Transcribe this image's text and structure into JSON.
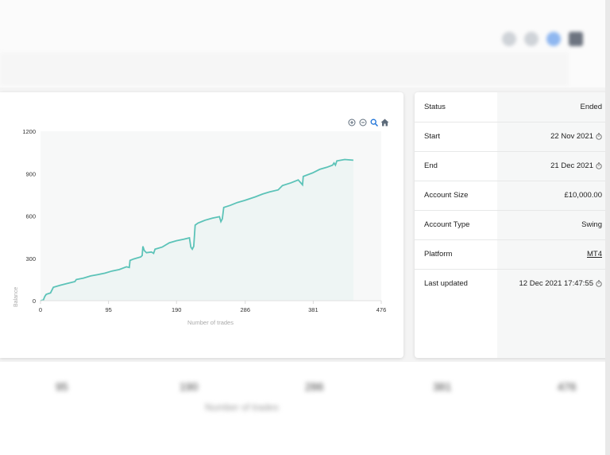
{
  "chart": {
    "y_label": "Balance",
    "x_label": "Number of trades",
    "toolbar": [
      "zoom-in",
      "zoom-out",
      "magnify",
      "home"
    ]
  },
  "chart_data": {
    "type": "area",
    "xlabel": "Number of trades",
    "ylabel": "Balance",
    "xlim": [
      0,
      476
    ],
    "ylim": [
      0,
      1200
    ],
    "x_ticks": [
      "0",
      "95",
      "190",
      "286",
      "381",
      "476"
    ],
    "y_ticks": [
      "0",
      "300",
      "600",
      "900",
      "1200"
    ],
    "series": [
      {
        "color": "#5cc3b8",
        "points": [
          [
            0,
            0
          ],
          [
            4,
            5
          ],
          [
            6,
            30
          ],
          [
            8,
            45
          ],
          [
            14,
            55
          ],
          [
            16,
            75
          ],
          [
            18,
            95
          ],
          [
            28,
            110
          ],
          [
            40,
            125
          ],
          [
            48,
            135
          ],
          [
            50,
            150
          ],
          [
            60,
            160
          ],
          [
            70,
            175
          ],
          [
            80,
            185
          ],
          [
            90,
            195
          ],
          [
            100,
            210
          ],
          [
            110,
            220
          ],
          [
            120,
            240
          ],
          [
            124,
            235
          ],
          [
            125,
            285
          ],
          [
            130,
            295
          ],
          [
            140,
            310
          ],
          [
            142,
            320
          ],
          [
            143,
            385
          ],
          [
            145,
            355
          ],
          [
            148,
            340
          ],
          [
            155,
            345
          ],
          [
            158,
            335
          ],
          [
            160,
            365
          ],
          [
            170,
            380
          ],
          [
            180,
            410
          ],
          [
            190,
            425
          ],
          [
            200,
            435
          ],
          [
            208,
            445
          ],
          [
            210,
            380
          ],
          [
            212,
            365
          ],
          [
            214,
            385
          ],
          [
            216,
            535
          ],
          [
            220,
            550
          ],
          [
            230,
            570
          ],
          [
            240,
            585
          ],
          [
            250,
            595
          ],
          [
            252,
            560
          ],
          [
            254,
            580
          ],
          [
            256,
            660
          ],
          [
            265,
            675
          ],
          [
            275,
            695
          ],
          [
            285,
            710
          ],
          [
            300,
            735
          ],
          [
            310,
            755
          ],
          [
            320,
            770
          ],
          [
            332,
            785
          ],
          [
            338,
            815
          ],
          [
            350,
            835
          ],
          [
            360,
            855
          ],
          [
            366,
            820
          ],
          [
            367,
            880
          ],
          [
            380,
            905
          ],
          [
            390,
            930
          ],
          [
            400,
            945
          ],
          [
            408,
            960
          ],
          [
            410,
            975
          ],
          [
            412,
            960
          ],
          [
            414,
            990
          ],
          [
            425,
            1000
          ],
          [
            437,
            995
          ]
        ]
      }
    ]
  },
  "info": {
    "rows": [
      {
        "label": "Status",
        "value": "Ended"
      },
      {
        "label": "Start",
        "value": "22 Nov 2021"
      },
      {
        "label": "End",
        "value": "21 Dec 2021"
      },
      {
        "label": "Account Size",
        "value": "£10,000.00"
      },
      {
        "label": "Account Type",
        "value": "Swing"
      },
      {
        "label": "Platform",
        "value": "MT4"
      },
      {
        "label": "Last updated",
        "value": "12 Dec 2021 17:47:55"
      }
    ]
  },
  "background": {
    "ticks": [
      "95",
      "190",
      "286",
      "381",
      "476"
    ],
    "xlabel": "Number of trades"
  }
}
